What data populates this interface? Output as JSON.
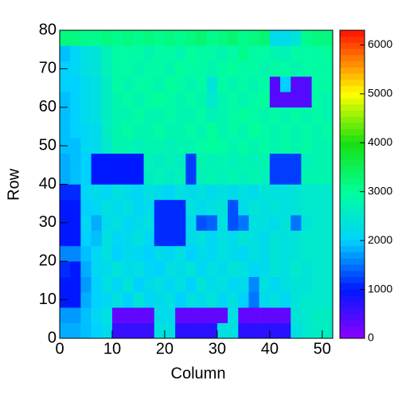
{
  "chart_data": {
    "type": "heatmap",
    "xlabel": "Column",
    "ylabel": "Row",
    "xbins": [
      0,
      2,
      4,
      6,
      8,
      10,
      12,
      14,
      16,
      18,
      20,
      22,
      24,
      26,
      28,
      30,
      32,
      34,
      36,
      38,
      40,
      42,
      44,
      46,
      48,
      50,
      52
    ],
    "ybins": [
      0,
      4,
      8,
      12,
      16,
      20,
      24,
      28,
      32,
      36,
      40,
      44,
      48,
      52,
      56,
      60,
      64,
      68,
      72,
      76,
      80
    ],
    "values": [
      [
        1800,
        1800,
        1900,
        2000,
        2200,
        600,
        600,
        600,
        600,
        2300,
        2300,
        700,
        700,
        700,
        700,
        2300,
        2300,
        700,
        700,
        700,
        700,
        700,
        2300,
        2500,
        2600,
        2600
      ],
      [
        1700,
        1700,
        1900,
        2100,
        2300,
        300,
        300,
        300,
        300,
        2200,
        2200,
        300,
        300,
        300,
        300,
        300,
        2300,
        300,
        300,
        300,
        300,
        300,
        2400,
        2500,
        2600,
        2600
      ],
      [
        1000,
        1000,
        1800,
        2000,
        2100,
        2300,
        2000,
        2400,
        2100,
        2200,
        2300,
        2000,
        2300,
        2200,
        2400,
        2100,
        2300,
        2000,
        1500,
        2200,
        2300,
        2100,
        2400,
        2500,
        2500,
        2500
      ],
      [
        1000,
        1000,
        1700,
        2000,
        2300,
        2100,
        2400,
        2000,
        2200,
        2300,
        2100,
        2300,
        2000,
        2400,
        2200,
        2300,
        2100,
        2200,
        1600,
        2300,
        2100,
        2300,
        2400,
        2400,
        2500,
        2500
      ],
      [
        1100,
        1000,
        1800,
        2100,
        2200,
        2400,
        2200,
        2300,
        2100,
        2000,
        2300,
        2200,
        2400,
        2100,
        2300,
        2200,
        2400,
        2300,
        2100,
        2200,
        2400,
        2300,
        2500,
        2400,
        2500,
        2500
      ],
      [
        1600,
        1600,
        1900,
        2100,
        2300,
        2000,
        2200,
        2100,
        2000,
        2200,
        2100,
        2300,
        2000,
        2200,
        2100,
        2300,
        2200,
        2100,
        2300,
        2200,
        2400,
        2300,
        2400,
        2500,
        2500,
        2500
      ],
      [
        1000,
        1000,
        2000,
        1900,
        2300,
        2100,
        2200,
        2300,
        2100,
        1100,
        1100,
        1100,
        2200,
        2300,
        2100,
        2300,
        2200,
        2400,
        2300,
        2200,
        2400,
        2300,
        2400,
        2500,
        2500,
        2500
      ],
      [
        1000,
        1000,
        2100,
        1800,
        2200,
        2300,
        2100,
        2200,
        2300,
        1100,
        1100,
        1100,
        2200,
        1300,
        1400,
        2300,
        1300,
        1500,
        2300,
        2300,
        2200,
        2400,
        1500,
        2400,
        2500,
        2500
      ],
      [
        1000,
        1000,
        2000,
        2100,
        2300,
        2200,
        2300,
        2100,
        2200,
        1100,
        1100,
        1100,
        2300,
        2200,
        2300,
        2400,
        1300,
        2200,
        2400,
        2300,
        2400,
        2300,
        2400,
        2500,
        2500,
        2500
      ],
      [
        1100,
        1100,
        2100,
        2200,
        2100,
        2300,
        2200,
        2100,
        2300,
        2200,
        2100,
        2300,
        2200,
        2300,
        2200,
        2300,
        2200,
        2300,
        2200,
        2400,
        2300,
        2300,
        2400,
        2500,
        2500,
        2500
      ],
      [
        1800,
        1900,
        2000,
        1000,
        1000,
        1000,
        1000,
        1000,
        2600,
        2700,
        2600,
        2700,
        1200,
        2700,
        2800,
        2700,
        2800,
        2700,
        2800,
        2700,
        1200,
        1200,
        1200,
        2800,
        2800,
        2800
      ],
      [
        1800,
        1900,
        2000,
        1000,
        1000,
        1000,
        1000,
        1000,
        2700,
        2600,
        2700,
        2600,
        1200,
        2800,
        2700,
        2800,
        2700,
        2800,
        2700,
        2800,
        1200,
        1200,
        1200,
        2700,
        2800,
        2800
      ],
      [
        1900,
        1900,
        2100,
        2200,
        2500,
        2800,
        2800,
        2700,
        2800,
        2800,
        2700,
        2800,
        2800,
        2900,
        3000,
        2900,
        2800,
        2900,
        2800,
        2900,
        2800,
        2900,
        2800,
        2900,
        2800,
        2800
      ],
      [
        1900,
        2000,
        2100,
        2200,
        2600,
        2800,
        2900,
        2800,
        2800,
        2900,
        2800,
        2800,
        2900,
        2800,
        3000,
        2800,
        2900,
        2800,
        3000,
        2900,
        2800,
        2900,
        2800,
        2900,
        2800,
        2900
      ],
      [
        1900,
        2000,
        2200,
        2300,
        2600,
        2800,
        2800,
        2900,
        2800,
        2800,
        2900,
        2800,
        2800,
        2900,
        2700,
        2800,
        2900,
        3000,
        2900,
        2800,
        2900,
        2800,
        2900,
        2800,
        2900,
        2800
      ],
      [
        1900,
        2000,
        2200,
        2300,
        2600,
        2800,
        2900,
        2800,
        2900,
        3000,
        2900,
        2800,
        2900,
        2800,
        2500,
        2800,
        2900,
        2800,
        2900,
        3000,
        400,
        400,
        400,
        400,
        2900,
        2800
      ],
      [
        2000,
        2000,
        2200,
        2300,
        2600,
        2900,
        2800,
        2900,
        2900,
        2800,
        3000,
        2900,
        2800,
        2900,
        2400,
        2900,
        2800,
        2900,
        2800,
        2900,
        400,
        2000,
        400,
        400,
        2900,
        2900
      ],
      [
        2000,
        2100,
        2300,
        2400,
        2700,
        2900,
        2900,
        2800,
        2900,
        2900,
        2800,
        3000,
        2900,
        2900,
        2800,
        2900,
        3000,
        2900,
        2900,
        2800,
        2900,
        2900,
        2800,
        2900,
        2900,
        2900
      ],
      [
        1900,
        2100,
        2300,
        2400,
        2700,
        2900,
        2900,
        2900,
        2800,
        2900,
        2900,
        2800,
        3000,
        2900,
        2900,
        2800,
        2900,
        3100,
        2900,
        2900,
        2800,
        2700,
        2900,
        2900,
        2900,
        3000
      ],
      [
        3200,
        3200,
        3100,
        3100,
        3200,
        3100,
        3200,
        3100,
        3200,
        3100,
        3200,
        3100,
        3200,
        3300,
        3100,
        3200,
        3300,
        3100,
        3200,
        3300,
        2200,
        2200,
        2400,
        3100,
        3200,
        3200
      ]
    ],
    "xlim": [
      0,
      52
    ],
    "ylim": [
      0,
      80
    ],
    "xticks": [
      0,
      10,
      20,
      30,
      40,
      50
    ],
    "yticks": [
      0,
      10,
      20,
      30,
      40,
      50,
      60,
      70,
      80
    ],
    "zlim": [
      0,
      6300
    ],
    "zticks": [
      0,
      1000,
      2000,
      3000,
      4000,
      5000,
      6000
    ],
    "colorscale": [
      [
        0,
        "#8c00ff"
      ],
      [
        1000,
        "#0018ff"
      ],
      [
        2000,
        "#00d2ff"
      ],
      [
        3000,
        "#00ff9a"
      ],
      [
        4000,
        "#18e010"
      ],
      [
        5000,
        "#ffff00"
      ],
      [
        6300,
        "#ff1000"
      ]
    ]
  }
}
